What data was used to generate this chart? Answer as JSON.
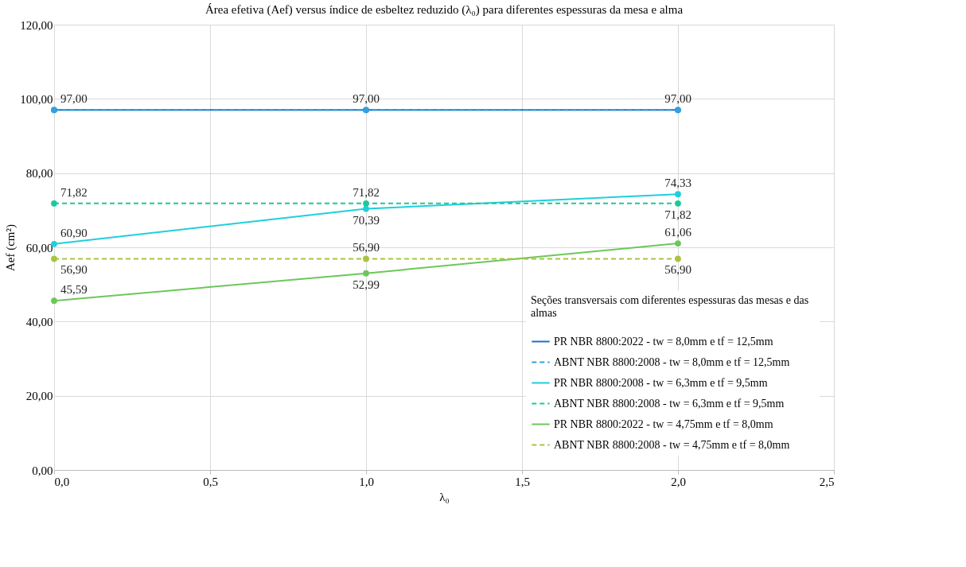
{
  "chart_data": {
    "type": "line",
    "title": "Área efetiva (Aef) versus índice de esbeltez reduzido (λ₀) para diferentes espessuras da mesa e alma",
    "xlabel": "λ₀",
    "ylabel": "Aef (cm²)",
    "legend_title": "Seções transversais  com diferentes  espessuras das mesas e das almas",
    "legend": "bottom right",
    "grid": true,
    "marker": "circle",
    "x": [
      0,
      1,
      2
    ],
    "xlim": [
      0,
      2.5
    ],
    "xticks": [
      {
        "value": 0,
        "label": "0,0"
      },
      {
        "value": 0.5,
        "label": "0,5"
      },
      {
        "value": 1,
        "label": "1,0"
      },
      {
        "value": 1.5,
        "label": "1,5"
      },
      {
        "value": 2,
        "label": "2,0"
      },
      {
        "value": 2.5,
        "label": "2,5"
      }
    ],
    "ylim": [
      0,
      120
    ],
    "yticks": [
      {
        "value": 0,
        "label": "0,00"
      },
      {
        "value": 20,
        "label": "20,00"
      },
      {
        "value": 40,
        "label": "40,00"
      },
      {
        "value": 60,
        "label": "60,00"
      },
      {
        "value": 80,
        "label": "80,00"
      },
      {
        "value": 100,
        "label": "100,00"
      },
      {
        "value": 120,
        "label": "120,00"
      }
    ],
    "series": [
      {
        "name": "PR NBR 8800:2022 - tw = 8,0mm e tf = 12,5mm",
        "color": "#1f6fc5",
        "line_style": "solid",
        "values": [
          97.0,
          97.0,
          97.0
        ],
        "value_labels": [
          "97,00",
          "97,00",
          "97,00"
        ]
      },
      {
        "name": "ABNT NBR 8800:2008 - tw = 8,0mm e tf = 12,5mm",
        "color": "#2ea3dc",
        "line_style": "dashed",
        "values": [
          97.0,
          97.0,
          97.0
        ],
        "value_labels": [
          null,
          null,
          null
        ]
      },
      {
        "name": "PR NBR 8800:2008 - tw = 6,3mm e tf = 9,5mm",
        "color": "#1fcfdc",
        "line_style": "solid",
        "values": [
          60.9,
          70.39,
          74.33
        ],
        "value_labels": [
          "60,90",
          "70,39",
          "74,33"
        ]
      },
      {
        "name": "ABNT NBR 8800:2008 - tw = 6,3mm e tf = 9,5mm",
        "color": "#1cc99a",
        "line_style": "dashed",
        "values": [
          71.82,
          71.82,
          71.82
        ],
        "value_labels": [
          "71,82",
          "71,82",
          "71,82"
        ]
      },
      {
        "name": "PR NBR 8800:2022 - tw = 4,75mm e tf = 8,0mm",
        "color": "#6cc75a",
        "line_style": "solid",
        "values": [
          45.59,
          52.99,
          61.06
        ],
        "value_labels": [
          "45,59",
          "52,99",
          "61,06"
        ]
      },
      {
        "name": "ABNT NBR 8800:2008 - tw = 4,75mm e tf = 8,0mm",
        "color": "#a8c43f",
        "line_style": "dashed",
        "values": [
          56.9,
          56.9,
          56.9
        ],
        "value_labels": [
          "56,90",
          "56,90",
          "56,90"
        ]
      }
    ]
  }
}
